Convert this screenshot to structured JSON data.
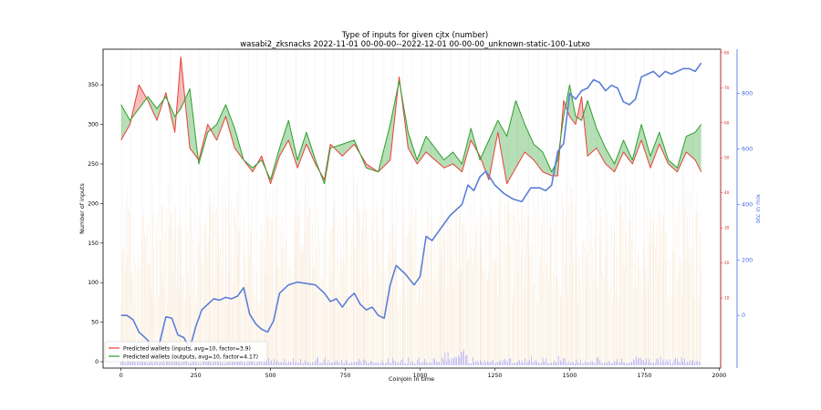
{
  "chart_data": {
    "type": "line",
    "title": "Type of inputs for given cjtx (number)",
    "subtitle": "wasabi2_zksnacks 2022-11-01 00-00-00--2022-12-01 00-00-00_unknown-static-100-1utxo",
    "xlabel": "Coinjoin in time",
    "ylabel": "Number of inputs",
    "y3label": "btc in mix",
    "xlim": [
      -60,
      2005
    ],
    "ylim": [
      -8,
      395
    ],
    "y2lim": [
      -10,
      81
    ],
    "y3lim": [
      -190,
      960
    ],
    "xticks": [
      0,
      250,
      500,
      750,
      1000,
      1250,
      1500,
      1750,
      2000
    ],
    "yticks": [
      0,
      50,
      100,
      150,
      200,
      250,
      300,
      350
    ],
    "y2ticks": [
      10,
      20,
      30,
      40,
      50,
      60,
      70,
      80
    ],
    "y3ticks": [
      0,
      200,
      400,
      600,
      800
    ],
    "legend_position": "lower-left",
    "series": [
      {
        "name": "Predicted wallets (inputs, avg=10, factor=3.9)",
        "color": "#e8403a",
        "x": [
          0,
          30,
          60,
          90,
          120,
          150,
          180,
          200,
          230,
          260,
          290,
          320,
          350,
          380,
          410,
          440,
          470,
          500,
          530,
          560,
          590,
          620,
          650,
          680,
          700,
          740,
          780,
          820,
          860,
          900,
          930,
          960,
          990,
          1020,
          1050,
          1080,
          1110,
          1140,
          1170,
          1200,
          1230,
          1260,
          1290,
          1320,
          1350,
          1380,
          1410,
          1440,
          1460,
          1480,
          1500,
          1520,
          1540,
          1560,
          1590,
          1620,
          1650,
          1680,
          1710,
          1740,
          1770,
          1800,
          1830,
          1860,
          1890,
          1920,
          1940
        ],
        "values": [
          280,
          300,
          350,
          330,
          305,
          340,
          290,
          385,
          270,
          255,
          300,
          280,
          310,
          270,
          255,
          240,
          260,
          225,
          260,
          280,
          245,
          275,
          250,
          230,
          275,
          260,
          275,
          250,
          240,
          255,
          360,
          270,
          250,
          265,
          255,
          245,
          250,
          240,
          280,
          260,
          230,
          290,
          225,
          245,
          265,
          255,
          240,
          235,
          235,
          330,
          310,
          300,
          335,
          260,
          270,
          250,
          240,
          265,
          250,
          280,
          245,
          275,
          250,
          240,
          265,
          255,
          240
        ]
      },
      {
        "name": "Predicted wallets (outputs, avg=10, factor=4.17)",
        "color": "#2ca02c",
        "x": [
          0,
          30,
          60,
          90,
          120,
          150,
          180,
          200,
          230,
          260,
          290,
          320,
          350,
          380,
          410,
          440,
          470,
          500,
          530,
          560,
          590,
          620,
          650,
          680,
          700,
          740,
          780,
          820,
          860,
          900,
          930,
          960,
          990,
          1020,
          1050,
          1080,
          1110,
          1140,
          1170,
          1200,
          1230,
          1260,
          1290,
          1320,
          1350,
          1380,
          1410,
          1440,
          1460,
          1480,
          1500,
          1520,
          1540,
          1560,
          1590,
          1620,
          1650,
          1680,
          1710,
          1740,
          1770,
          1800,
          1830,
          1860,
          1890,
          1920,
          1940
        ],
        "values": [
          325,
          305,
          320,
          335,
          320,
          335,
          310,
          320,
          345,
          250,
          290,
          300,
          325,
          295,
          255,
          245,
          255,
          230,
          270,
          305,
          255,
          290,
          255,
          225,
          270,
          275,
          280,
          245,
          240,
          300,
          355,
          290,
          255,
          285,
          270,
          255,
          265,
          250,
          295,
          255,
          280,
          305,
          285,
          330,
          300,
          275,
          265,
          240,
          255,
          310,
          350,
          310,
          305,
          330,
          295,
          270,
          250,
          280,
          255,
          300,
          260,
          290,
          255,
          245,
          285,
          290,
          300
        ]
      },
      {
        "name": "",
        "color": "#5b7fd8",
        "axis": "y3",
        "x": [
          0,
          20,
          40,
          60,
          90,
          110,
          130,
          150,
          170,
          190,
          210,
          230,
          250,
          270,
          290,
          310,
          330,
          350,
          370,
          390,
          410,
          430,
          450,
          470,
          490,
          510,
          530,
          560,
          590,
          620,
          650,
          680,
          700,
          720,
          740,
          760,
          780,
          800,
          820,
          840,
          860,
          880,
          900,
          920,
          950,
          980,
          1000,
          1020,
          1040,
          1060,
          1080,
          1100,
          1120,
          1140,
          1160,
          1180,
          1200,
          1220,
          1250,
          1280,
          1310,
          1340,
          1370,
          1400,
          1420,
          1440,
          1460,
          1480,
          1500,
          1520,
          1540,
          1560,
          1580,
          1600,
          1620,
          1640,
          1660,
          1680,
          1700,
          1720,
          1740,
          1760,
          1780,
          1800,
          1820,
          1840,
          1860,
          1880,
          1900,
          1920,
          1940
        ],
        "values": [
          0,
          0,
          -15,
          -60,
          -90,
          -150,
          -95,
          -5,
          -10,
          -70,
          -80,
          -120,
          -40,
          20,
          40,
          60,
          55,
          65,
          60,
          70,
          100,
          5,
          -30,
          -50,
          -60,
          -20,
          80,
          110,
          120,
          115,
          110,
          80,
          50,
          60,
          30,
          60,
          80,
          40,
          20,
          30,
          0,
          -10,
          110,
          180,
          150,
          110,
          140,
          285,
          270,
          300,
          330,
          360,
          380,
          400,
          470,
          450,
          500,
          520,
          470,
          440,
          420,
          410,
          460,
          460,
          450,
          470,
          590,
          620,
          800,
          780,
          810,
          820,
          850,
          840,
          810,
          830,
          820,
          770,
          760,
          780,
          860,
          870,
          880,
          860,
          880,
          870,
          880,
          890,
          890,
          880,
          910
        ]
      }
    ]
  }
}
